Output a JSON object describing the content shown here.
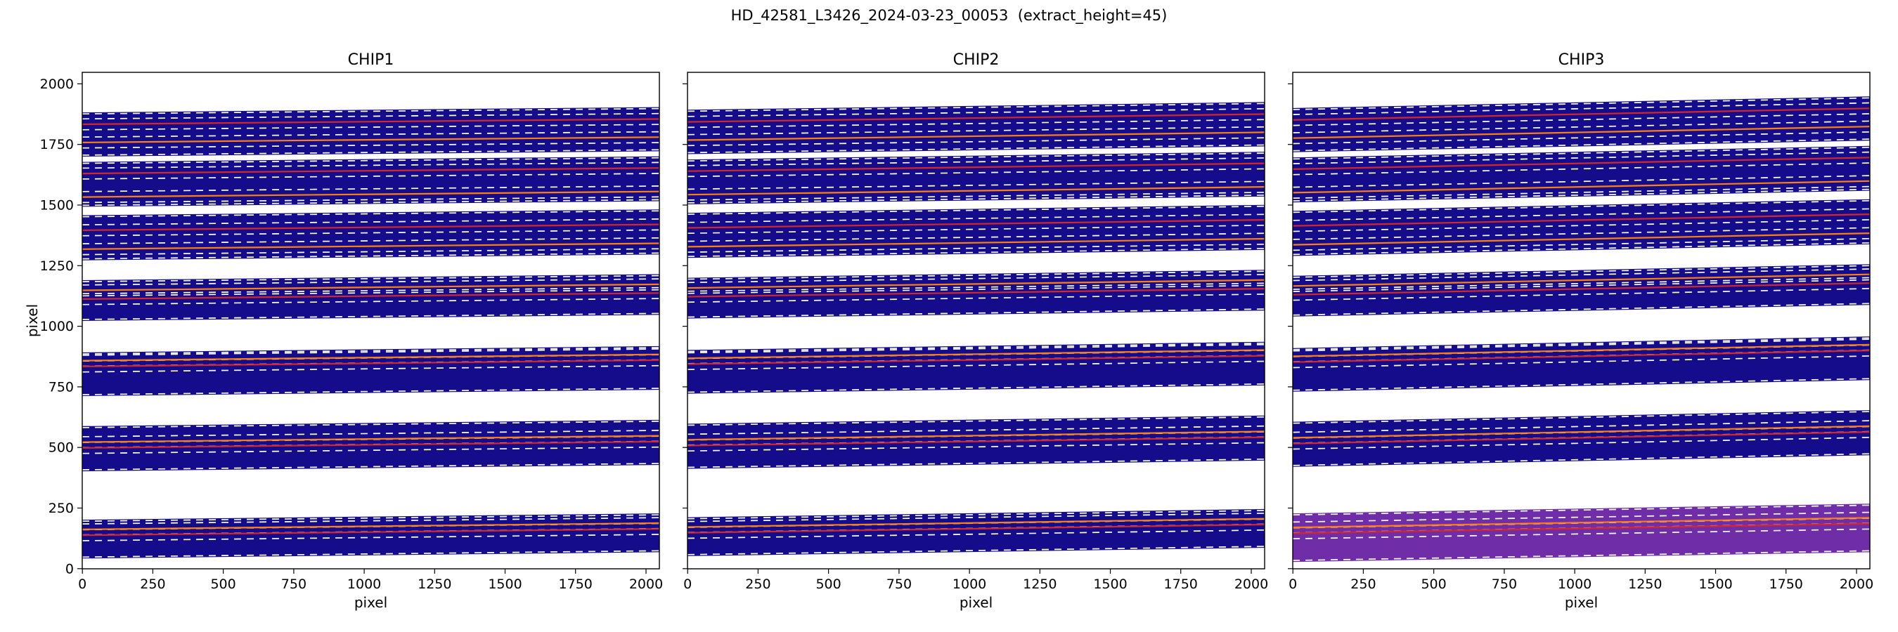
{
  "chart_data": {
    "type": "heatmap",
    "title": "HD_42581_L3426_2024-03-23_00053  (extract_height=45)",
    "extract_height": 45,
    "xlabel": "pixel",
    "ylabel": "pixel",
    "xlim": [
      -0.5,
      2047.5
    ],
    "ylim": [
      -0.5,
      2047.5
    ],
    "xticks": [
      0,
      250,
      500,
      750,
      1000,
      1250,
      1500,
      1750,
      2000
    ],
    "yticks": [
      0,
      250,
      500,
      750,
      1000,
      1250,
      1500,
      1750,
      2000
    ],
    "grid": false,
    "legend": "none",
    "band_fill_default": "#150c8c",
    "dash_color": "#ffffff",
    "trace_color_orange": "#ff7f0e",
    "trace_color_red": "#d62728",
    "panels": [
      {
        "title": "CHIP1",
        "show_ytick_labels": true,
        "bands": [
          {
            "y_bottom": 1700,
            "y_top": 1882,
            "slope": 22,
            "traces": [
              {
                "y": 1833,
                "color": "#d62728"
              },
              {
                "y": 1758,
                "color": "#ff7f0e"
              }
            ]
          },
          {
            "y_bottom": 1493,
            "y_top": 1678,
            "slope": 23,
            "traces": [
              {
                "y": 1630,
                "color": "#d62728"
              },
              {
                "y": 1533,
                "color": "#ff7f0e"
              }
            ]
          },
          {
            "y_bottom": 1272,
            "y_top": 1458,
            "slope": 24,
            "traces": [
              {
                "y": 1396,
                "color": "#d62728"
              },
              {
                "y": 1318,
                "color": "#ff7f0e"
              }
            ]
          },
          {
            "y_bottom": 1022,
            "y_top": 1190,
            "slope": 25,
            "traces": [
              {
                "y": 1148,
                "color": "#ff7f0e"
              },
              {
                "y": 1112,
                "color": "#d62728"
              }
            ]
          },
          {
            "y_bottom": 712,
            "y_top": 892,
            "slope": 26,
            "traces": [
              {
                "y": 858,
                "color": "#ff7f0e"
              },
              {
                "y": 834,
                "color": "#d62728"
              }
            ]
          },
          {
            "y_bottom": 402,
            "y_top": 588,
            "slope": 26,
            "traces": [
              {
                "y": 522,
                "color": "#ff7f0e"
              },
              {
                "y": 498,
                "color": "#d62728"
              }
            ]
          },
          {
            "y_bottom": 42,
            "y_top": 202,
            "slope": 26,
            "traces": [
              {
                "y": 162,
                "color": "#ff7f0e"
              },
              {
                "y": 138,
                "color": "#d62728"
              }
            ]
          }
        ]
      },
      {
        "title": "CHIP2",
        "show_ytick_labels": false,
        "bands": [
          {
            "y_bottom": 1710,
            "y_top": 1893,
            "slope": 32,
            "traces": [
              {
                "y": 1843,
                "color": "#d62728"
              },
              {
                "y": 1768,
                "color": "#ff7f0e"
              }
            ]
          },
          {
            "y_bottom": 1503,
            "y_top": 1688,
            "slope": 32,
            "traces": [
              {
                "y": 1640,
                "color": "#d62728"
              },
              {
                "y": 1543,
                "color": "#ff7f0e"
              }
            ]
          },
          {
            "y_bottom": 1282,
            "y_top": 1468,
            "slope": 33,
            "traces": [
              {
                "y": 1406,
                "color": "#d62728"
              },
              {
                "y": 1328,
                "color": "#ff7f0e"
              }
            ]
          },
          {
            "y_bottom": 1032,
            "y_top": 1200,
            "slope": 33,
            "traces": [
              {
                "y": 1158,
                "color": "#ff7f0e"
              },
              {
                "y": 1122,
                "color": "#d62728"
              }
            ]
          },
          {
            "y_bottom": 722,
            "y_top": 902,
            "slope": 34,
            "traces": [
              {
                "y": 868,
                "color": "#ff7f0e"
              },
              {
                "y": 844,
                "color": "#d62728"
              }
            ]
          },
          {
            "y_bottom": 412,
            "y_top": 598,
            "slope": 34,
            "traces": [
              {
                "y": 532,
                "color": "#ff7f0e"
              },
              {
                "y": 508,
                "color": "#d62728"
              }
            ]
          },
          {
            "y_bottom": 52,
            "y_top": 212,
            "slope": 34,
            "traces": [
              {
                "y": 172,
                "color": "#ff7f0e"
              },
              {
                "y": 148,
                "color": "#d62728"
              }
            ]
          }
        ]
      },
      {
        "title": "CHIP3",
        "show_ytick_labels": false,
        "bands": [
          {
            "y_bottom": 1718,
            "y_top": 1900,
            "slope": 48,
            "traces": [
              {
                "y": 1851,
                "color": "#d62728"
              },
              {
                "y": 1776,
                "color": "#ff7f0e"
              }
            ]
          },
          {
            "y_bottom": 1511,
            "y_top": 1696,
            "slope": 48,
            "traces": [
              {
                "y": 1648,
                "color": "#d62728"
              },
              {
                "y": 1551,
                "color": "#ff7f0e"
              }
            ]
          },
          {
            "y_bottom": 1290,
            "y_top": 1476,
            "slope": 48,
            "traces": [
              {
                "y": 1414,
                "color": "#d62728"
              },
              {
                "y": 1336,
                "color": "#ff7f0e"
              }
            ]
          },
          {
            "y_bottom": 1040,
            "y_top": 1208,
            "slope": 48,
            "traces": [
              {
                "y": 1166,
                "color": "#ff7f0e"
              },
              {
                "y": 1130,
                "color": "#d62728"
              }
            ]
          },
          {
            "y_bottom": 730,
            "y_top": 910,
            "slope": 48,
            "traces": [
              {
                "y": 876,
                "color": "#ff7f0e"
              },
              {
                "y": 852,
                "color": "#d62728"
              }
            ]
          },
          {
            "y_bottom": 420,
            "y_top": 606,
            "slope": 48,
            "traces": [
              {
                "y": 540,
                "color": "#ff7f0e"
              },
              {
                "y": 516,
                "color": "#d62728"
              }
            ]
          },
          {
            "y_bottom": 28,
            "y_top": 228,
            "slope": 40,
            "fill": "#6f2da8",
            "traces": [
              {
                "y": 170,
                "color": "#ff7f0e"
              },
              {
                "y": 146,
                "color": "#d62728"
              }
            ]
          }
        ]
      }
    ]
  }
}
